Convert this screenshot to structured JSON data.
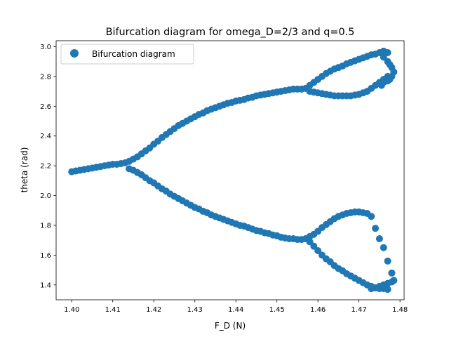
{
  "chart_data": {
    "type": "scatter",
    "title": "Bifurcation diagram for omega_D=2/3 and q=0.5",
    "xlabel": "F_D (N)",
    "ylabel": "theta (rad)",
    "xlim": [
      1.3962,
      1.481
    ],
    "ylim": [
      1.3,
      3.04
    ],
    "xticks": [
      1.4,
      1.41,
      1.42,
      1.43,
      1.44,
      1.45,
      1.46,
      1.47,
      1.48
    ],
    "xtick_labels": [
      "1.40",
      "1.41",
      "1.42",
      "1.43",
      "1.44",
      "1.45",
      "1.46",
      "1.47",
      "1.48"
    ],
    "yticks": [
      1.4,
      1.6,
      1.8,
      2.0,
      2.2,
      2.4,
      2.6,
      2.8,
      3.0
    ],
    "ytick_labels": [
      "1.4",
      "1.6",
      "1.8",
      "2.0",
      "2.2",
      "2.4",
      "2.6",
      "2.8",
      "3.0"
    ],
    "grid": false,
    "legend_position": "upper-left",
    "series": [
      {
        "name": "Bifurcation diagram",
        "color": "#1f77b4",
        "x": [
          1.4,
          1.401,
          1.402,
          1.403,
          1.404,
          1.405,
          1.406,
          1.407,
          1.408,
          1.409,
          1.41,
          1.411,
          1.412,
          1.413,
          1.414,
          1.415,
          1.416,
          1.417,
          1.418,
          1.419,
          1.42,
          1.421,
          1.422,
          1.423,
          1.424,
          1.425,
          1.426,
          1.427,
          1.428,
          1.429,
          1.43,
          1.431,
          1.432,
          1.433,
          1.434,
          1.435,
          1.436,
          1.437,
          1.438,
          1.439,
          1.44,
          1.441,
          1.442,
          1.443,
          1.444,
          1.445,
          1.446,
          1.447,
          1.448,
          1.449,
          1.45,
          1.451,
          1.452,
          1.453,
          1.454,
          1.455,
          1.456,
          1.457,
          1.414,
          1.415,
          1.416,
          1.417,
          1.418,
          1.419,
          1.42,
          1.421,
          1.422,
          1.423,
          1.424,
          1.425,
          1.426,
          1.427,
          1.428,
          1.429,
          1.43,
          1.431,
          1.432,
          1.433,
          1.434,
          1.435,
          1.436,
          1.437,
          1.438,
          1.439,
          1.44,
          1.441,
          1.442,
          1.443,
          1.444,
          1.445,
          1.446,
          1.447,
          1.448,
          1.449,
          1.45,
          1.451,
          1.452,
          1.453,
          1.454,
          1.455,
          1.456,
          1.457,
          1.458,
          1.459,
          1.46,
          1.461,
          1.462,
          1.463,
          1.464,
          1.465,
          1.466,
          1.467,
          1.468,
          1.469,
          1.47,
          1.471,
          1.472,
          1.473,
          1.474,
          1.475,
          1.476,
          1.477,
          1.458,
          1.459,
          1.46,
          1.461,
          1.462,
          1.463,
          1.464,
          1.465,
          1.466,
          1.467,
          1.468,
          1.469,
          1.47,
          1.471,
          1.472,
          1.473,
          1.474,
          1.475,
          1.476,
          1.477,
          1.458,
          1.459,
          1.46,
          1.461,
          1.462,
          1.463,
          1.464,
          1.465,
          1.466,
          1.467,
          1.468,
          1.469,
          1.47,
          1.471,
          1.472,
          1.473,
          1.458,
          1.459,
          1.46,
          1.461,
          1.462,
          1.463,
          1.464,
          1.465,
          1.466,
          1.467,
          1.468,
          1.469,
          1.47,
          1.471,
          1.472,
          1.473,
          1.474,
          1.475,
          1.476,
          1.477,
          1.4755,
          1.476,
          1.477,
          1.4775,
          1.478,
          1.4785,
          1.478,
          1.4775,
          1.477,
          1.476,
          1.4755,
          1.474,
          1.475,
          1.476,
          1.477,
          1.478,
          1.4785,
          1.478,
          1.477,
          1.476,
          1.475,
          1.474,
          1.473
        ],
        "y": [
          2.16,
          2.165,
          2.17,
          2.175,
          2.18,
          2.185,
          2.19,
          2.195,
          2.2,
          2.205,
          2.21,
          2.21,
          2.215,
          2.22,
          2.23,
          2.245,
          2.26,
          2.28,
          2.3,
          2.32,
          2.345,
          2.365,
          2.39,
          2.41,
          2.43,
          2.45,
          2.47,
          2.485,
          2.5,
          2.515,
          2.53,
          2.545,
          2.555,
          2.57,
          2.58,
          2.59,
          2.6,
          2.61,
          2.62,
          2.625,
          2.635,
          2.64,
          2.645,
          2.655,
          2.66,
          2.67,
          2.675,
          2.68,
          2.685,
          2.69,
          2.695,
          2.7,
          2.705,
          2.71,
          2.715,
          2.715,
          2.715,
          2.72,
          2.18,
          2.17,
          2.155,
          2.14,
          2.12,
          2.1,
          2.085,
          2.065,
          2.045,
          2.03,
          2.01,
          1.995,
          1.98,
          1.965,
          1.95,
          1.935,
          1.92,
          1.91,
          1.895,
          1.885,
          1.87,
          1.86,
          1.85,
          1.84,
          1.83,
          1.82,
          1.81,
          1.8,
          1.795,
          1.785,
          1.775,
          1.765,
          1.76,
          1.75,
          1.745,
          1.735,
          1.73,
          1.72,
          1.715,
          1.71,
          1.71,
          1.705,
          1.705,
          1.71,
          2.74,
          2.76,
          2.78,
          2.8,
          2.82,
          2.835,
          2.85,
          2.86,
          2.87,
          2.885,
          2.895,
          2.905,
          2.915,
          2.925,
          2.935,
          2.945,
          2.95,
          2.96,
          2.97,
          2.96,
          2.7,
          2.695,
          2.69,
          2.685,
          2.68,
          2.675,
          2.67,
          2.67,
          2.67,
          2.67,
          2.67,
          2.675,
          2.68,
          2.69,
          2.7,
          2.72,
          2.74,
          2.76,
          2.78,
          2.8,
          1.725,
          1.74,
          1.76,
          1.785,
          1.805,
          1.825,
          1.845,
          1.86,
          1.87,
          1.88,
          1.885,
          1.89,
          1.89,
          1.885,
          1.88,
          1.86,
          1.69,
          1.66,
          1.63,
          1.6,
          1.575,
          1.555,
          1.53,
          1.51,
          1.495,
          1.475,
          1.46,
          1.445,
          1.43,
          1.415,
          1.4,
          1.39,
          1.38,
          1.375,
          1.375,
          1.37,
          2.96,
          2.93,
          2.9,
          2.88,
          2.86,
          2.83,
          2.8,
          2.78,
          2.77,
          2.76,
          2.74,
          1.78,
          1.71,
          1.65,
          1.56,
          1.48,
          1.43,
          1.42,
          1.41,
          1.4,
          1.39,
          1.38,
          1.375
        ]
      }
    ]
  }
}
